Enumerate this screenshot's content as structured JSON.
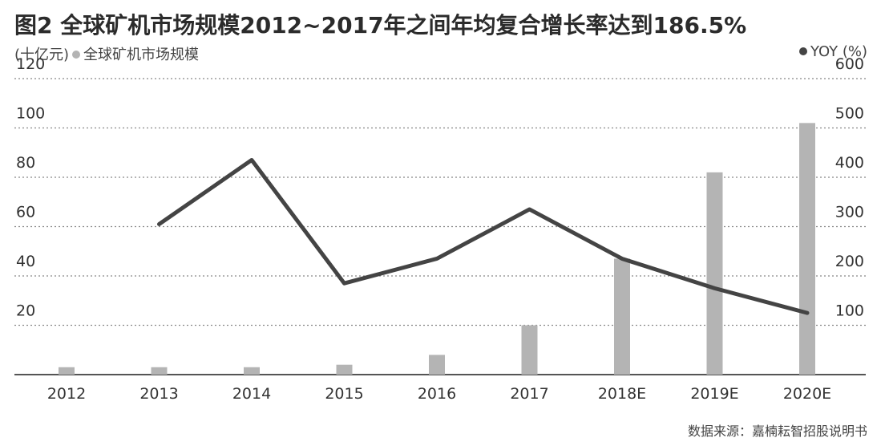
{
  "title": "图2 全球矿机市场规模2012~2017年之间年均复合增长率达到186.5%",
  "legend": {
    "unit": "(十亿元)",
    "bar_series": "全球矿机市场规模",
    "line_series": "YOY (%)"
  },
  "source": "数据来源：嘉楠耘智招股说明书",
  "colors": {
    "bar": "#b4b4b4",
    "line": "#444444",
    "grid": "#888888",
    "axis": "#555555"
  },
  "chart_data": {
    "type": "bar+line",
    "categories": [
      "2012",
      "2013",
      "2014",
      "2015",
      "2016",
      "2017",
      "2018E",
      "2019E",
      "2020E"
    ],
    "series": [
      {
        "name": "全球矿机市场规模",
        "type": "bar",
        "axis": "left",
        "values": [
          3,
          3,
          3,
          4,
          8,
          20,
          47,
          82,
          102
        ]
      },
      {
        "name": "YOY (%)",
        "type": "line",
        "axis": "right",
        "values": [
          null,
          305,
          435,
          185,
          235,
          335,
          235,
          175,
          125
        ]
      }
    ],
    "y_left": {
      "ylim": [
        0,
        120
      ],
      "ticks": [
        "20",
        "40",
        "60",
        "80",
        "100",
        "120"
      ]
    },
    "y_right": {
      "ylim": [
        0,
        600
      ],
      "ticks": [
        "100",
        "200",
        "300",
        "400",
        "500",
        "600"
      ]
    },
    "grid": "dashed horizontal",
    "legend_position": "top"
  }
}
